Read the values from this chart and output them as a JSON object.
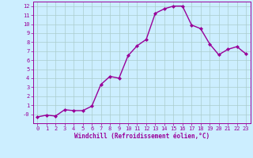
{
  "x": [
    0,
    1,
    2,
    3,
    4,
    5,
    6,
    7,
    8,
    9,
    10,
    11,
    12,
    13,
    14,
    15,
    16,
    17,
    18,
    19,
    20,
    21,
    22,
    23
  ],
  "y": [
    -0.3,
    -0.1,
    -0.2,
    0.5,
    0.4,
    0.4,
    0.9,
    3.3,
    4.2,
    4.0,
    6.5,
    7.6,
    8.3,
    11.2,
    11.7,
    12.0,
    12.0,
    9.9,
    9.5,
    7.8,
    6.6,
    7.2,
    7.5,
    6.7
  ],
  "line_color": "#990099",
  "marker": "D",
  "marker_size": 2.0,
  "bg_color": "#cceeff",
  "grid_color": "#aacccc",
  "xlabel": "Windchill (Refroidissement éolien,°C)",
  "xlim": [
    -0.5,
    23.5
  ],
  "ylim": [
    -1.0,
    12.5
  ],
  "yticks": [
    0,
    1,
    2,
    3,
    4,
    5,
    6,
    7,
    8,
    9,
    10,
    11,
    12
  ],
  "ytick_labels": [
    "-0",
    "1",
    "2",
    "3",
    "4",
    "5",
    "6",
    "7",
    "8",
    "9",
    "10",
    "11",
    "12"
  ],
  "xticks": [
    0,
    1,
    2,
    3,
    4,
    5,
    6,
    7,
    8,
    9,
    10,
    11,
    12,
    13,
    14,
    15,
    16,
    17,
    18,
    19,
    20,
    21,
    22,
    23
  ],
  "tick_fontsize": 5.0,
  "xlabel_fontsize": 5.5,
  "line_width": 1.0
}
